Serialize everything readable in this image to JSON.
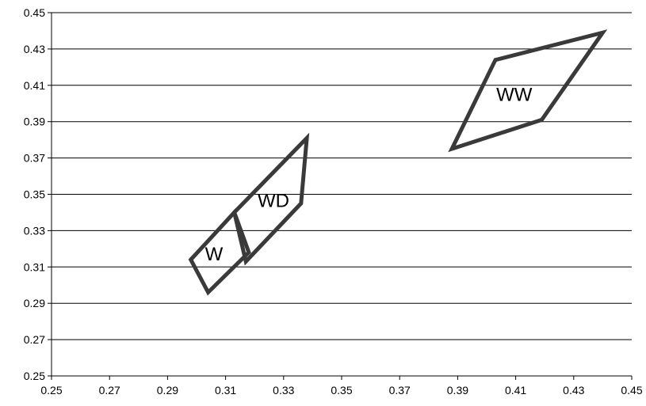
{
  "chart_data": {
    "type": "scatter",
    "title": "",
    "xlabel": "",
    "ylabel": "",
    "xlim": [
      0.25,
      0.45
    ],
    "ylim": [
      0.25,
      0.45
    ],
    "x_ticks": [
      0.25,
      0.27,
      0.29,
      0.31,
      0.33,
      0.35,
      0.37,
      0.39,
      0.41,
      0.43,
      0.45
    ],
    "y_ticks": [
      0.25,
      0.27,
      0.29,
      0.31,
      0.33,
      0.35,
      0.37,
      0.39,
      0.41,
      0.43,
      0.45
    ],
    "x_tick_labels": [
      "0.25",
      "0.27",
      "0.29",
      "0.31",
      "0.33",
      "0.35",
      "0.37",
      "0.39",
      "0.41",
      "0.43",
      "0.45"
    ],
    "y_tick_labels": [
      "0.25",
      "0.27",
      "0.29",
      "0.31",
      "0.33",
      "0.35",
      "0.37",
      "0.39",
      "0.41",
      "0.43",
      "0.45"
    ],
    "grid": "horizontal",
    "line_color": "#3a3a3a",
    "regions": [
      {
        "label": "W",
        "polygon": [
          [
            0.298,
            0.314
          ],
          [
            0.313,
            0.34
          ],
          [
            0.318,
            0.318
          ],
          [
            0.304,
            0.296
          ]
        ],
        "label_at": [
          0.306,
          0.317
        ]
      },
      {
        "label": "WD",
        "polygon": [
          [
            0.313,
            0.34
          ],
          [
            0.338,
            0.381
          ],
          [
            0.336,
            0.345
          ],
          [
            0.317,
            0.313
          ]
        ],
        "label_at": [
          0.3265,
          0.3465
        ]
      },
      {
        "label": "WW",
        "polygon": [
          [
            0.388,
            0.375
          ],
          [
            0.403,
            0.424
          ],
          [
            0.44,
            0.439
          ],
          [
            0.419,
            0.391
          ]
        ],
        "label_at": [
          0.4095,
          0.4049
        ]
      }
    ]
  }
}
